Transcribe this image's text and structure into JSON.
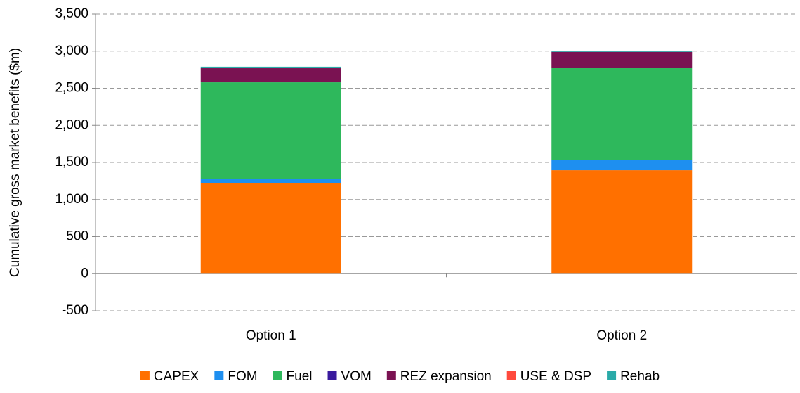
{
  "chart_data": {
    "type": "stacked_bar",
    "y_label": "Cumulative gross market benefits ($m)",
    "categories": [
      "Option 1",
      "Option 2"
    ],
    "series": [
      {
        "name": "CAPEX",
        "color": "#ff7000",
        "values": [
          1220,
          1395
        ]
      },
      {
        "name": "FOM",
        "color": "#1e8ff0",
        "values": [
          60,
          140
        ]
      },
      {
        "name": "Fuel",
        "color": "#2eb85c",
        "values": [
          1300,
          1235
        ]
      },
      {
        "name": "VOM",
        "color": "#3a1a9e",
        "values": [
          0,
          0
        ]
      },
      {
        "name": "REZ expansion",
        "color": "#7a1252",
        "values": [
          190,
          220
        ]
      },
      {
        "name": "USE & DSP",
        "color": "#ff4a3d",
        "values": [
          0,
          0
        ]
      },
      {
        "name": "Rehab",
        "color": "#2aaaa8",
        "values": [
          20,
          15
        ]
      }
    ],
    "ylim": [
      -500,
      3500
    ],
    "yticks": [
      -500,
      0,
      500,
      {
        "value": 1000,
        "label": "1,000"
      },
      {
        "value": 1500,
        "label": "1,500"
      },
      {
        "value": 2000,
        "label": "2,000"
      },
      {
        "value": 2500,
        "label": "2,500"
      },
      {
        "value": 3000,
        "label": "3,000"
      },
      {
        "value": 3500,
        "label": "3,500"
      }
    ],
    "grid": true,
    "legend": "bottom"
  }
}
